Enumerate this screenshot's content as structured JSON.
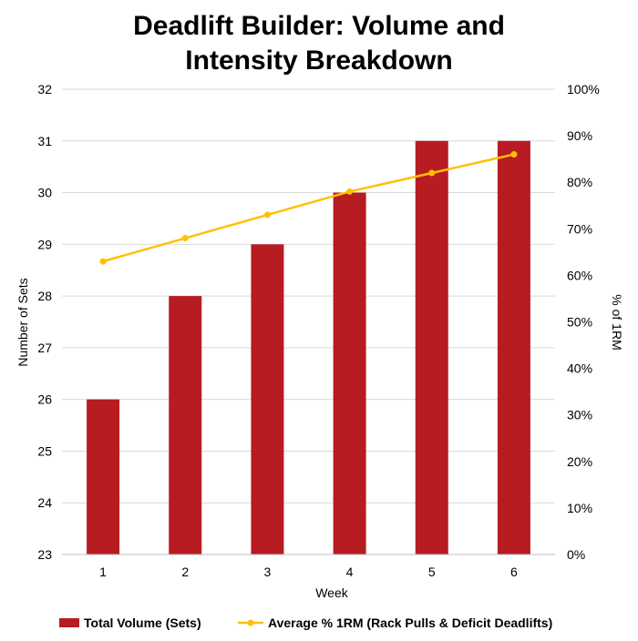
{
  "chart_data": {
    "type": "bar",
    "title_lines": [
      "Deadlift Builder: Volume and",
      "Intensity Breakdown"
    ],
    "xlabel": "Week",
    "ylabel": "Number of Sets",
    "y2label": "% of 1RM",
    "categories": [
      "1",
      "2",
      "3",
      "4",
      "5",
      "6"
    ],
    "ylim": [
      23,
      32
    ],
    "y_ticks": [
      23,
      24,
      25,
      26,
      27,
      28,
      29,
      30,
      31,
      32
    ],
    "y2lim": [
      0,
      100
    ],
    "y2_ticks": [
      0,
      10,
      20,
      30,
      40,
      50,
      60,
      70,
      80,
      90,
      100
    ],
    "y2_tick_labels": [
      "0%",
      "10%",
      "20%",
      "30%",
      "40%",
      "50%",
      "60%",
      "70%",
      "80%",
      "90%",
      "100%"
    ],
    "grid": true,
    "legend_position": "bottom",
    "series": [
      {
        "name": "Total Volume (Sets)",
        "type": "bar",
        "axis": "left",
        "color": "#b71c22",
        "values": [
          26,
          28,
          29,
          30,
          31,
          31
        ]
      },
      {
        "name": "Average % 1RM (Rack Pulls & Deficit Deadlifts)",
        "type": "line",
        "axis": "right",
        "color": "#ffc000",
        "values": [
          63,
          68,
          73,
          78,
          82,
          86
        ]
      }
    ]
  }
}
